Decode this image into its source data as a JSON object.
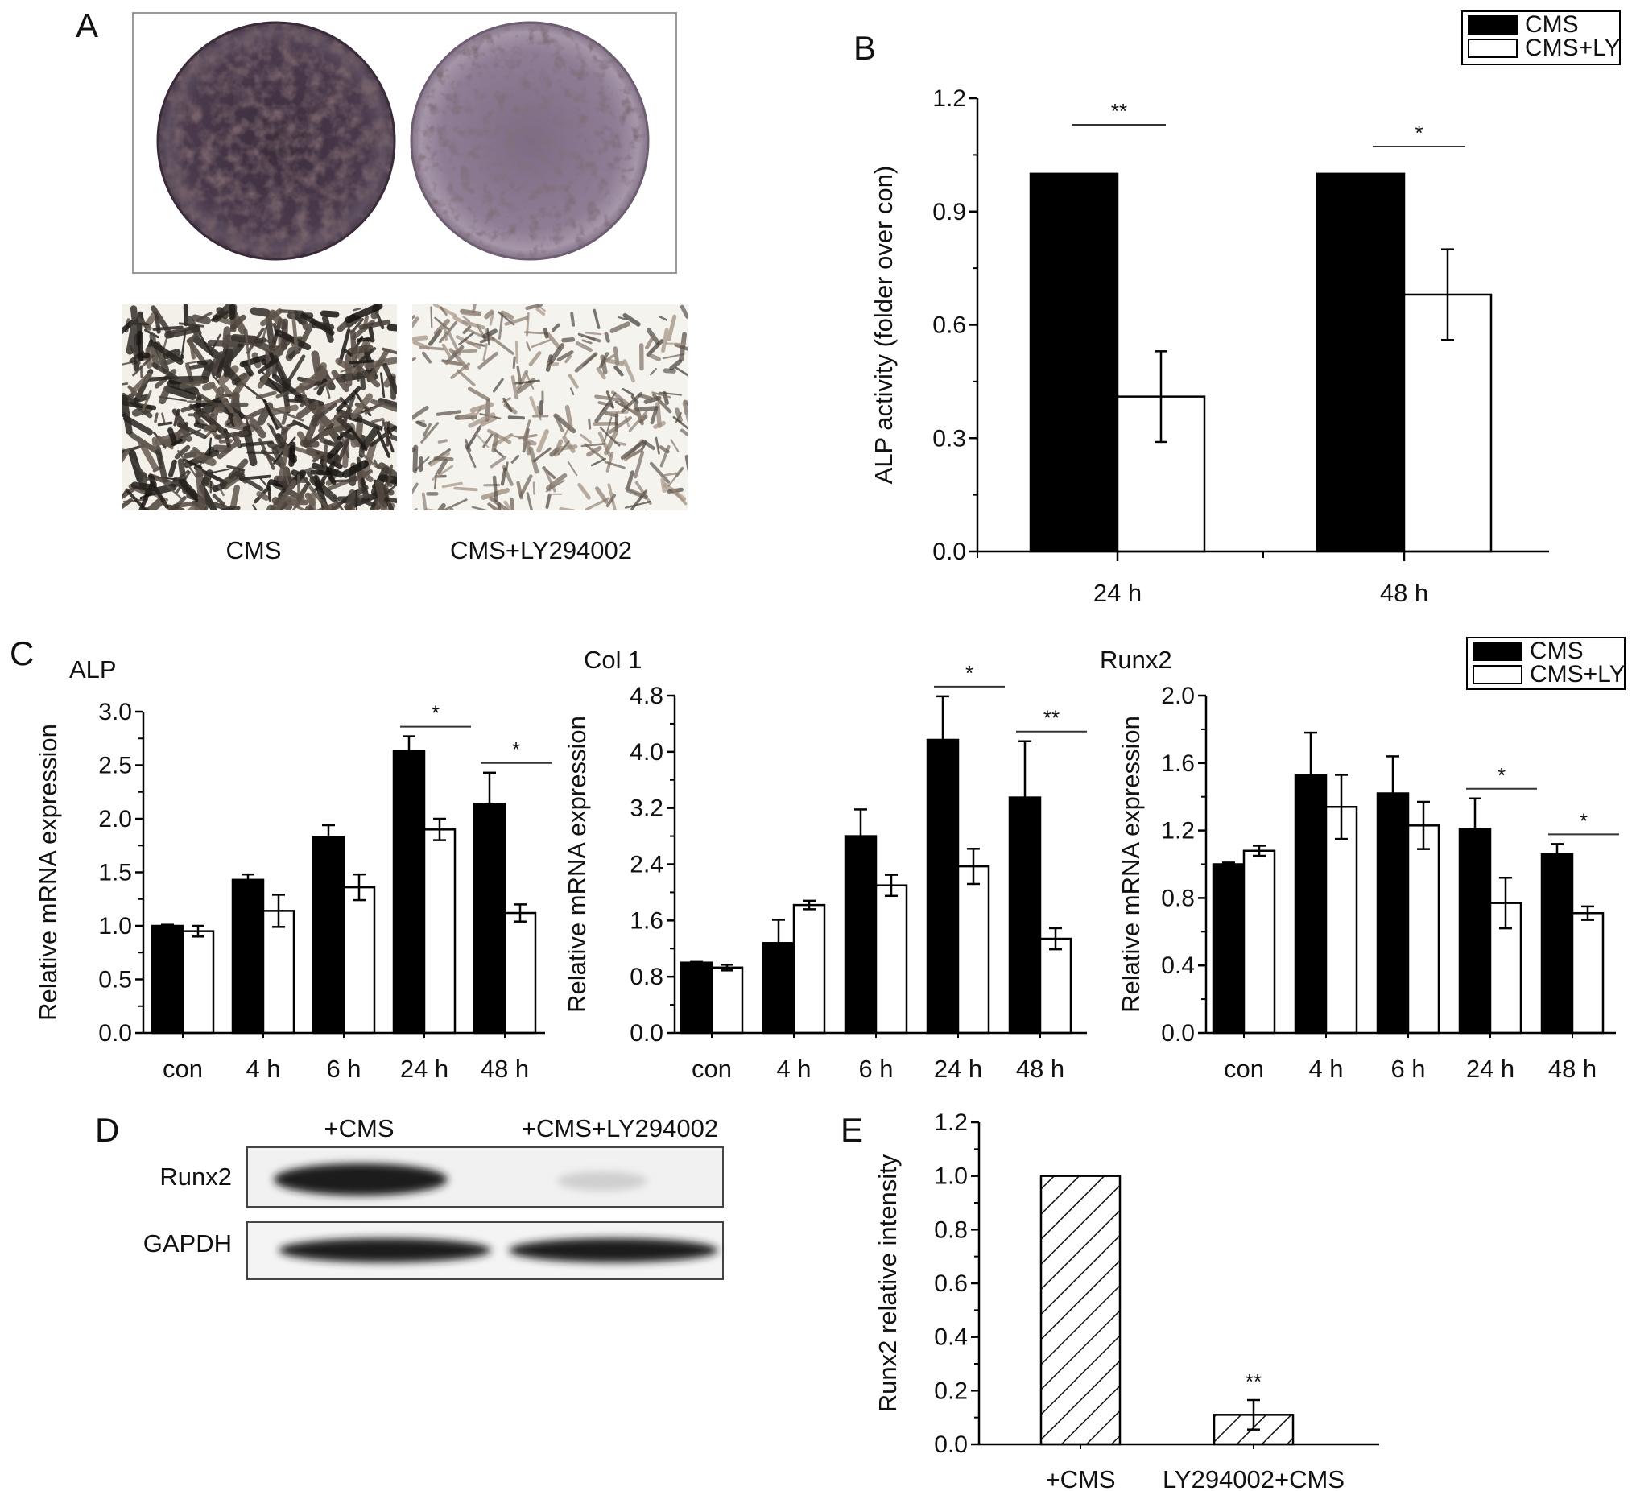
{
  "panels": {
    "A": {
      "letter": "A",
      "labels": [
        "CMS",
        "CMS+LY294002"
      ]
    },
    "D": {
      "letter": "D",
      "lane_labels": [
        "+CMS",
        "+CMS+LY294002"
      ],
      "row_labels": [
        "Runx2",
        "GAPDH"
      ]
    }
  },
  "colors": {
    "cms": "#000000",
    "cms_ly": "#ffffff",
    "stain_dark": "#3a2a3a",
    "stain_light": "#8a7890"
  },
  "chart_data": [
    {
      "id": "B",
      "letter": "B",
      "type": "bar",
      "categories": [
        "24 h",
        "48 h"
      ],
      "series": [
        {
          "name": "CMS",
          "values": [
            1.0,
            1.0
          ],
          "error": [
            0,
            0
          ],
          "color": "#000000"
        },
        {
          "name": "CMS+LY",
          "values": [
            0.41,
            0.68
          ],
          "error": [
            0.12,
            0.12
          ],
          "color": "#ffffff"
        }
      ],
      "title": "",
      "xlabel": "",
      "ylabel": "ALP activity (folder over con)",
      "ylim": [
        0,
        1.2
      ],
      "yticks": [
        "0.0",
        "0.3",
        "0.6",
        "0.9",
        "1.2"
      ],
      "significance": [
        "**",
        "*"
      ],
      "legend": "top-right"
    },
    {
      "id": "C1",
      "letter": "C",
      "type": "bar",
      "title": "ALP",
      "categories": [
        "con",
        "4 h",
        "6 h",
        "24 h",
        "48 h"
      ],
      "series": [
        {
          "name": "CMS",
          "values": [
            1.0,
            1.43,
            1.83,
            2.63,
            2.14
          ],
          "error": [
            0.01,
            0.05,
            0.11,
            0.14,
            0.29
          ]
        },
        {
          "name": "CMS+LY",
          "values": [
            0.95,
            1.14,
            1.36,
            1.9,
            1.12
          ],
          "error": [
            0.05,
            0.15,
            0.12,
            0.1,
            0.08
          ]
        }
      ],
      "ylabel": "Relative mRNA expression",
      "ylim": [
        0,
        3.0
      ],
      "yticks": [
        "0.0",
        "0.5",
        "1.0",
        "1.5",
        "2.0",
        "2.5",
        "3.0"
      ],
      "significance": [
        {
          "category": "24 h",
          "mark": "*"
        },
        {
          "category": "48 h",
          "mark": "*"
        }
      ]
    },
    {
      "id": "C2",
      "type": "bar",
      "title": "Col 1",
      "categories": [
        "con",
        "4 h",
        "6 h",
        "24 h",
        "48 h"
      ],
      "series": [
        {
          "name": "CMS",
          "values": [
            1.0,
            1.28,
            2.8,
            4.17,
            3.35
          ],
          "error": [
            0.01,
            0.33,
            0.38,
            0.62,
            0.8
          ]
        },
        {
          "name": "CMS+LY",
          "values": [
            0.93,
            1.82,
            2.1,
            2.37,
            1.34
          ],
          "error": [
            0.04,
            0.06,
            0.15,
            0.25,
            0.15
          ]
        }
      ],
      "ylabel": "Relative mRNA expression",
      "ylim": [
        0,
        4.8
      ],
      "yticks": [
        "0.0",
        "0.8",
        "1.6",
        "2.4",
        "3.2",
        "4.0",
        "4.8"
      ],
      "significance": [
        {
          "category": "24 h",
          "mark": "*"
        },
        {
          "category": "48 h",
          "mark": "**"
        }
      ]
    },
    {
      "id": "C3",
      "type": "bar",
      "title": "Runx2",
      "categories": [
        "con",
        "4 h",
        "6 h",
        "24 h",
        "48 h"
      ],
      "series": [
        {
          "name": "CMS",
          "values": [
            1.0,
            1.53,
            1.42,
            1.21,
            1.06
          ],
          "error": [
            0.01,
            0.25,
            0.22,
            0.18,
            0.06
          ]
        },
        {
          "name": "CMS+LY",
          "values": [
            1.08,
            1.34,
            1.23,
            0.77,
            0.71
          ],
          "error": [
            0.03,
            0.19,
            0.14,
            0.15,
            0.04
          ]
        }
      ],
      "ylabel": "Relative mRNA expression",
      "ylim": [
        0,
        2.0
      ],
      "yticks": [
        "0.0",
        "0.4",
        "0.8",
        "1.2",
        "1.6",
        "2.0"
      ],
      "significance": [
        {
          "category": "24 h",
          "mark": "*"
        },
        {
          "category": "48 h",
          "mark": "*"
        }
      ],
      "legend": "top-right"
    },
    {
      "id": "E",
      "letter": "E",
      "type": "bar",
      "categories": [
        "+CMS",
        "LY294002+CMS"
      ],
      "series": [
        {
          "name": "",
          "values": [
            1.0,
            0.11
          ],
          "error": [
            0,
            0.055
          ],
          "pattern": "hatched"
        }
      ],
      "ylabel": "Runx2 relative intensity",
      "ylim": [
        0,
        1.2
      ],
      "yticks": [
        "0.0",
        "0.2",
        "0.4",
        "0.6",
        "0.8",
        "1.0",
        "1.2"
      ],
      "significance": [
        {
          "category": "LY294002+CMS",
          "mark": "**"
        }
      ]
    }
  ]
}
